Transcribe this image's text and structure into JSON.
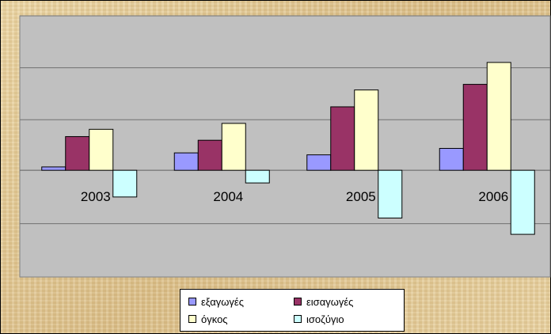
{
  "chart_data": {
    "type": "bar",
    "categories": [
      "2003",
      "2004",
      "2005",
      "2006"
    ],
    "series": [
      {
        "name": "εξαγωγές",
        "color": "#9999ff",
        "values": [
          0.12,
          0.62,
          0.55,
          0.78
        ]
      },
      {
        "name": "εισαγωγές",
        "color": "#993366",
        "values": [
          1.2,
          1.07,
          2.26,
          3.06
        ]
      },
      {
        "name": "όγκος",
        "color": "#ffffcc",
        "values": [
          1.46,
          1.67,
          2.86,
          3.84
        ]
      },
      {
        "name": "ισοζύγιο",
        "color": "#ccffff",
        "values": [
          -0.95,
          -0.45,
          -1.7,
          -2.28
        ]
      }
    ],
    "ylim": [
      -3.8,
      5.5
    ],
    "gridlines": [
      -1.9,
      0,
      1.8,
      3.65,
      5.5
    ],
    "grid": true,
    "legend": "bottom",
    "plot_background": "#c0c0c0"
  }
}
